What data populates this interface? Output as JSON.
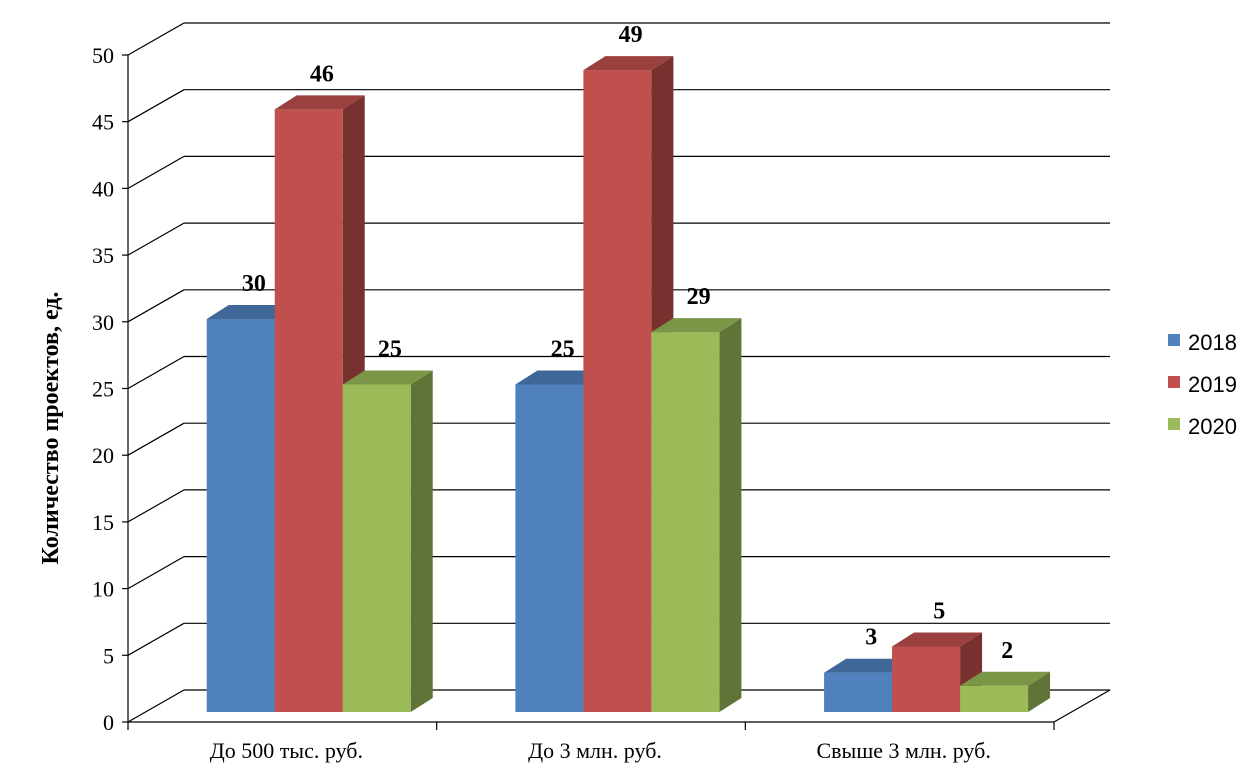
{
  "chart_data": {
    "type": "bar",
    "title": "",
    "xlabel": "",
    "ylabel": "Количество проектов, ед.",
    "ylim": [
      0,
      50
    ],
    "yticks": [
      0,
      5,
      10,
      15,
      20,
      25,
      30,
      35,
      40,
      45,
      50
    ],
    "grid": true,
    "legend_position": "right",
    "categories": [
      "До 500 тыс. руб.",
      "До 3 млн. руб.",
      "Свыше 3 млн. руб."
    ],
    "series": [
      {
        "name": "2018",
        "values": [
          30,
          25,
          3
        ],
        "color": "#4F81BD"
      },
      {
        "name": "2019",
        "values": [
          46,
          49,
          5
        ],
        "color": "#C0504D"
      },
      {
        "name": "2020",
        "values": [
          25,
          29,
          2
        ],
        "color": "#9BBB59"
      }
    ]
  }
}
